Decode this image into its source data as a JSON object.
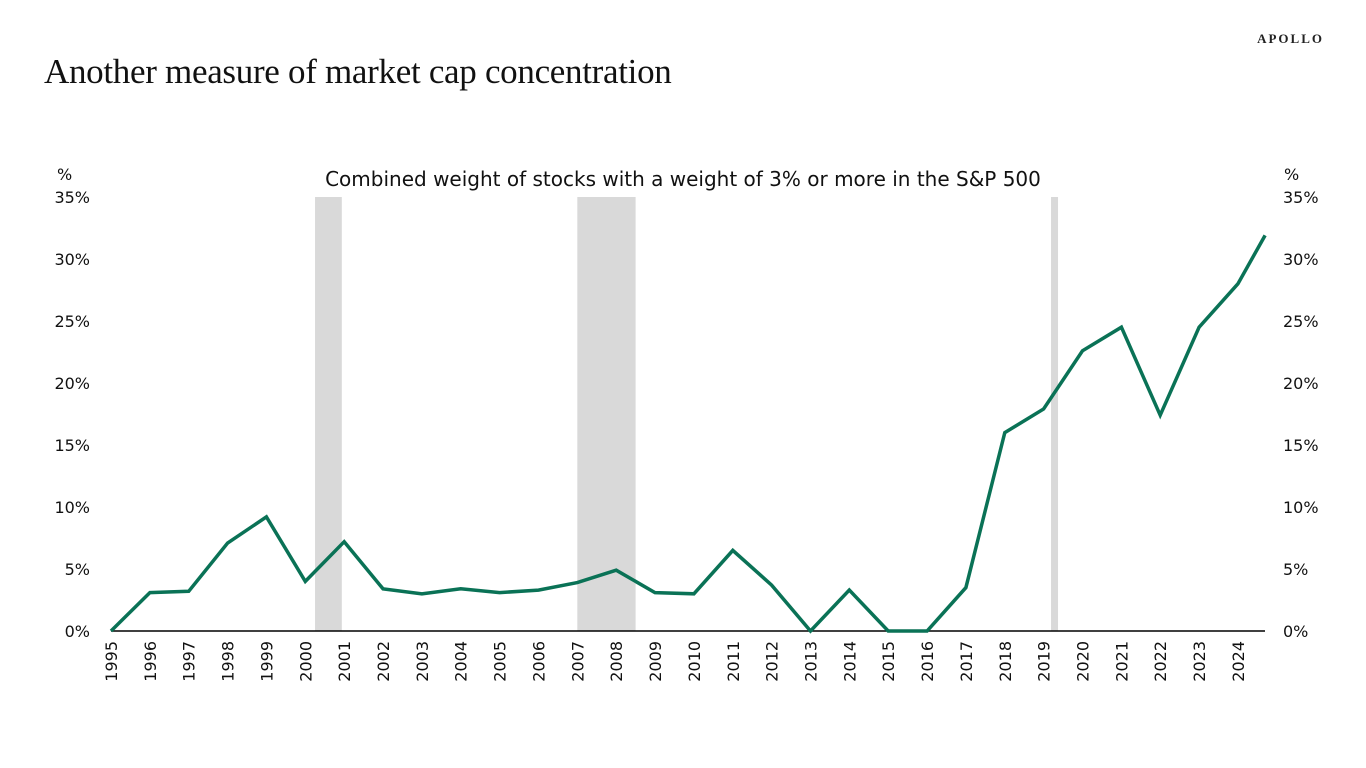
{
  "header": {
    "title": "Another measure of market cap concentration",
    "logo": "APOLLO"
  },
  "chart_data": {
    "type": "line",
    "title": "Combined weight of stocks with a weight of 3% or more in the S&P 500",
    "ylabel_left": "%",
    "ylabel_right": "%",
    "ylim": [
      0,
      35
    ],
    "yticks": [
      0,
      5,
      10,
      15,
      20,
      25,
      30,
      35
    ],
    "ytick_labels": [
      "0%",
      "5%",
      "10%",
      "15%",
      "20%",
      "25%",
      "30%",
      "35%"
    ],
    "xticks": [
      "1995",
      "1996",
      "1997",
      "1998",
      "1999",
      "2000",
      "2001",
      "2002",
      "2003",
      "2004",
      "2005",
      "2006",
      "2007",
      "2008",
      "2009",
      "2010",
      "2011",
      "2012",
      "2013",
      "2014",
      "2015",
      "2016",
      "2017",
      "2018",
      "2019",
      "2020",
      "2021",
      "2022",
      "2023",
      "2024"
    ],
    "grid": false,
    "line_color": "#0a7256",
    "shading_color": "#d9d9d9",
    "recession_shading": [
      [
        2000.25,
        2000.94
      ],
      [
        2007.0,
        2008.5
      ],
      [
        2019.19,
        2019.37
      ]
    ],
    "series": [
      {
        "x": [
          1995,
          1996,
          1997,
          1998,
          1999,
          2000,
          2001,
          2002,
          2003,
          2004,
          2005,
          2006,
          2007,
          2008,
          2009,
          2010,
          2011,
          2012,
          2013,
          2014,
          2015,
          2016,
          2017,
          2018,
          2019,
          2020,
          2021,
          2022,
          2023,
          2024,
          2024.7
        ],
        "y": [
          0,
          3.1,
          3.2,
          7.1,
          9.2,
          4.0,
          7.2,
          3.4,
          3.0,
          3.4,
          3.1,
          3.3,
          3.9,
          4.9,
          3.1,
          3.0,
          6.5,
          3.7,
          0,
          3.3,
          0,
          0,
          3.5,
          16.0,
          17.9,
          22.6,
          24.5,
          17.4,
          24.5,
          28.0,
          31.9
        ]
      }
    ]
  }
}
